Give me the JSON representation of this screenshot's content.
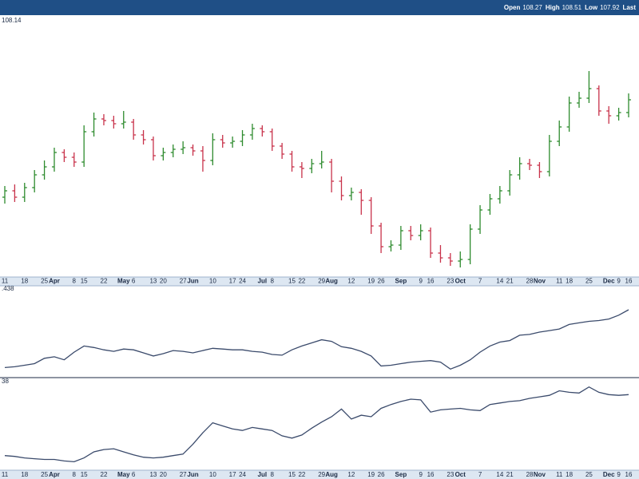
{
  "header": {
    "items": [
      {
        "label": "Open",
        "value": 108.27
      },
      {
        "label": "High",
        "value": 108.51
      },
      {
        "label": "Low",
        "value": 107.92
      },
      {
        "label": "Last"
      }
    ]
  },
  "chart_data": [
    {
      "type": "ohlc",
      "label": "108.14",
      "ylim": [
        97.1,
        113.35
      ],
      "up_color": "#2e8b2e",
      "down_color": "#c8324a",
      "categories": [
        "11",
        null,
        "18",
        null,
        "25",
        "Apr",
        null,
        "8",
        "15",
        null,
        "22",
        null,
        "May",
        "6",
        null,
        "13",
        "20",
        null,
        "27",
        "Jun",
        null,
        "10",
        null,
        "17",
        "24",
        null,
        "Jul",
        "8",
        null,
        "15",
        "22",
        null,
        "29",
        "Aug",
        null,
        "12",
        null,
        "19",
        "26",
        null,
        "Sep",
        null,
        "9",
        "16",
        null,
        "23",
        "Oct",
        null,
        "7",
        null,
        "14",
        "21",
        null,
        "28",
        "Nov",
        null,
        "11",
        "18",
        null,
        "25",
        null,
        "Dec",
        "9",
        "16"
      ],
      "open": [
        102.0,
        102.4,
        102.0,
        102.6,
        103.4,
        103.9,
        104.8,
        104.5,
        104.2,
        106.1,
        106.9,
        106.8,
        106.6,
        106.7,
        105.9,
        105.6,
        104.6,
        104.8,
        105.0,
        105.1,
        104.9,
        104.3,
        105.6,
        105.4,
        105.5,
        105.9,
        106.3,
        106.1,
        105.2,
        104.7,
        103.9,
        103.8,
        104.1,
        104.2,
        103.0,
        102.1,
        102.3,
        101.8,
        100.2,
        98.9,
        99.0,
        99.9,
        99.6,
        99.9,
        98.5,
        98.2,
        98.0,
        98.1,
        100.0,
        101.2,
        101.9,
        102.4,
        103.4,
        104.1,
        104.0,
        103.6,
        105.5,
        106.4,
        107.9,
        108.2,
        108.8,
        107.4,
        107.1,
        107.3
      ],
      "high": [
        102.7,
        102.8,
        102.9,
        103.7,
        104.3,
        105.1,
        105.0,
        104.8,
        106.5,
        107.3,
        107.2,
        107.1,
        107.4,
        106.9,
        106.2,
        105.8,
        105.1,
        105.3,
        105.5,
        105.3,
        105.2,
        106.0,
        105.9,
        105.8,
        106.2,
        106.6,
        106.5,
        106.3,
        105.4,
        104.9,
        104.2,
        104.4,
        104.9,
        104.4,
        103.3,
        102.6,
        102.5,
        102.0,
        100.4,
        99.3,
        100.2,
        100.2,
        100.3,
        100.1,
        99.0,
        98.5,
        98.6,
        100.3,
        101.5,
        102.2,
        102.7,
        103.7,
        104.5,
        104.4,
        104.2,
        105.9,
        106.8,
        108.3,
        108.6,
        109.9,
        109.0,
        107.7,
        107.6,
        108.5
      ],
      "low": [
        101.6,
        101.7,
        101.7,
        102.3,
        103.1,
        103.6,
        104.2,
        103.9,
        103.9,
        105.8,
        106.5,
        106.3,
        106.3,
        105.6,
        105.3,
        104.3,
        104.3,
        104.5,
        104.7,
        104.6,
        103.6,
        104.0,
        105.1,
        105.1,
        105.2,
        105.6,
        105.8,
        104.9,
        104.4,
        103.6,
        103.2,
        103.5,
        103.8,
        102.3,
        101.8,
        101.8,
        100.9,
        99.7,
        98.5,
        98.6,
        98.7,
        99.3,
        99.3,
        98.2,
        97.9,
        97.7,
        97.6,
        97.8,
        99.7,
        100.9,
        101.6,
        102.1,
        103.1,
        103.7,
        103.2,
        103.3,
        105.2,
        106.1,
        107.6,
        107.9,
        107.1,
        106.6,
        106.8,
        107.0
      ],
      "close": [
        102.4,
        102.0,
        102.6,
        103.4,
        103.9,
        104.8,
        104.5,
        104.2,
        106.1,
        106.9,
        106.8,
        106.6,
        106.7,
        105.9,
        105.6,
        104.6,
        104.8,
        105.0,
        105.1,
        104.9,
        104.3,
        105.6,
        105.4,
        105.5,
        105.9,
        106.3,
        106.1,
        105.2,
        104.7,
        103.9,
        103.8,
        104.1,
        104.2,
        103.0,
        102.1,
        102.3,
        101.8,
        100.2,
        98.9,
        99.0,
        99.9,
        99.6,
        99.9,
        98.5,
        98.2,
        98.0,
        98.1,
        100.0,
        101.2,
        101.9,
        102.4,
        103.4,
        104.1,
        104.0,
        103.6,
        105.5,
        106.4,
        107.9,
        108.2,
        108.8,
        107.4,
        107.1,
        107.3,
        108.1
      ]
    },
    {
      "type": "line",
      "label": ".438",
      "ylim": [
        0,
        112
      ],
      "color": "#3a4a6b",
      "values": [
        10,
        11,
        13,
        15,
        22,
        24,
        20,
        30,
        38,
        36,
        33,
        31,
        34,
        33,
        29,
        25,
        28,
        32,
        31,
        29,
        32,
        35,
        34,
        33,
        33,
        31,
        30,
        27,
        26,
        33,
        38,
        42,
        46,
        44,
        37,
        35,
        31,
        25,
        12,
        13,
        15,
        17,
        18,
        19,
        17,
        8,
        13,
        20,
        30,
        38,
        43,
        45,
        52,
        53,
        56,
        58,
        60,
        66,
        68,
        70,
        71,
        73,
        78,
        85
      ]
    },
    {
      "type": "line",
      "label": "38",
      "ylim": [
        0,
        114
      ],
      "color": "#3a4a6b",
      "values": [
        17,
        16,
        14,
        13,
        12,
        12,
        10,
        9,
        14,
        22,
        25,
        26,
        22,
        18,
        15,
        14,
        15,
        17,
        19,
        32,
        47,
        60,
        56,
        52,
        50,
        54,
        52,
        50,
        43,
        40,
        44,
        53,
        61,
        68,
        78,
        65,
        70,
        68,
        79,
        84,
        88,
        91,
        90,
        74,
        77,
        78,
        79,
        77,
        76,
        84,
        86,
        88,
        89,
        92,
        94,
        96,
        102,
        100,
        99,
        107,
        100,
        97,
        96,
        97
      ]
    }
  ]
}
